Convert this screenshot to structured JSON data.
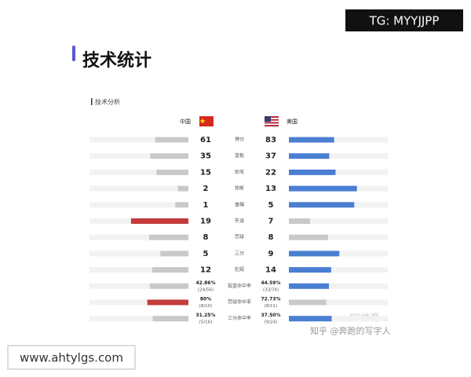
{
  "watermark_top": "TG: MYYJJPP",
  "watermark_bottom": "www.ahtylgs.com",
  "watermark_source": "知乎 @奔跑的写字人",
  "watermark_logo": "PP体育",
  "header": {
    "title": "技术统计",
    "subtitle": "技术分析"
  },
  "teams": {
    "left": "中国",
    "right": "美国"
  },
  "colors": {
    "left": "#c43c3c",
    "right": "#4a7fd2",
    "lower": "#c9c9c9",
    "track": "#f2f2f2"
  },
  "rows": [
    {
      "label": "得分",
      "left": {
        "value": 61
      },
      "right": {
        "value": 83
      }
    },
    {
      "label": "篮板",
      "left": {
        "value": 35
      },
      "right": {
        "value": 37
      }
    },
    {
      "label": "助攻",
      "left": {
        "value": 15
      },
      "right": {
        "value": 22
      }
    },
    {
      "label": "抢断",
      "left": {
        "value": 2
      },
      "right": {
        "value": 13
      }
    },
    {
      "label": "盖帽",
      "left": {
        "value": 1
      },
      "right": {
        "value": 5
      }
    },
    {
      "label": "失误",
      "left": {
        "value": 19
      },
      "right": {
        "value": 7
      }
    },
    {
      "label": "罚球",
      "left": {
        "value": 8
      },
      "right": {
        "value": 8
      }
    },
    {
      "label": "三分",
      "left": {
        "value": 5
      },
      "right": {
        "value": 9
      }
    },
    {
      "label": "犯规",
      "left": {
        "value": 12
      },
      "right": {
        "value": 14
      }
    },
    {
      "label": "投篮命中率",
      "left": {
        "value": 42.86,
        "value_label": "42.86%",
        "detail": "(24/56)"
      },
      "right": {
        "value": 44.59,
        "value_label": "44.59%",
        "detail": "(33/74)"
      }
    },
    {
      "label": "罚球命中率",
      "left": {
        "value": 80,
        "value_label": "80%",
        "detail": "(8/10)"
      },
      "right": {
        "value": 72.73,
        "value_label": "72.73%",
        "detail": "(8/11)"
      }
    },
    {
      "label": "三分命中率",
      "left": {
        "value": 31.25,
        "value_label": "31.25%",
        "detail": "(5/16)"
      },
      "right": {
        "value": 37.5,
        "value_label": "37.50%",
        "detail": "(9/24)"
      }
    }
  ]
}
